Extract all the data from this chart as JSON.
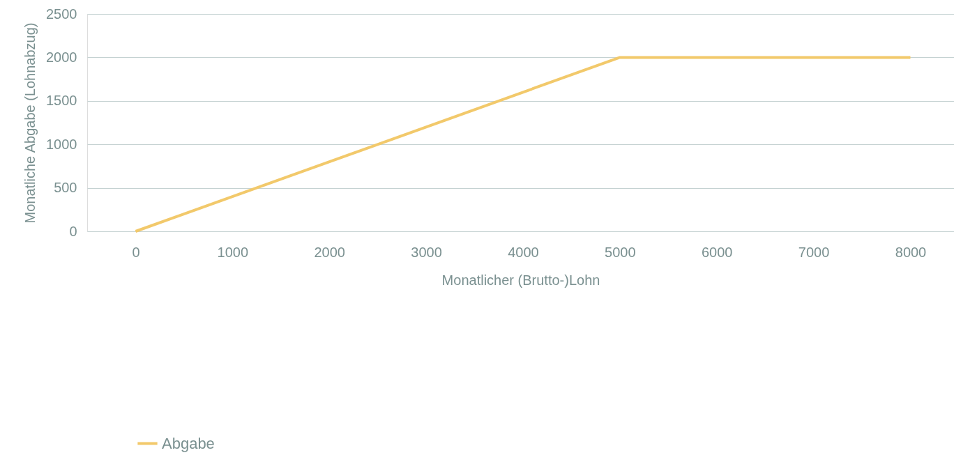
{
  "chart_data": {
    "type": "line",
    "xlabel": "Monatlicher (Brutto-)Lohn",
    "ylabel": "Monatliche Abgabe (Lohnabzug)",
    "x": [
      0,
      5000,
      8000
    ],
    "series": [
      {
        "name": "Abgabe",
        "color": "#f2c96b",
        "values": [
          0,
          2000,
          2000
        ]
      }
    ],
    "xlim": [
      -500,
      8450
    ],
    "xticks": [
      0,
      1000,
      2000,
      3000,
      4000,
      5000,
      6000,
      7000,
      8000
    ],
    "ylim": [
      0,
      2500
    ],
    "yticks": [
      0,
      500,
      1000,
      1500,
      2000,
      2500
    ],
    "grid": "y",
    "legend": "bottom left",
    "marker": "none",
    "line_style": "solid"
  }
}
